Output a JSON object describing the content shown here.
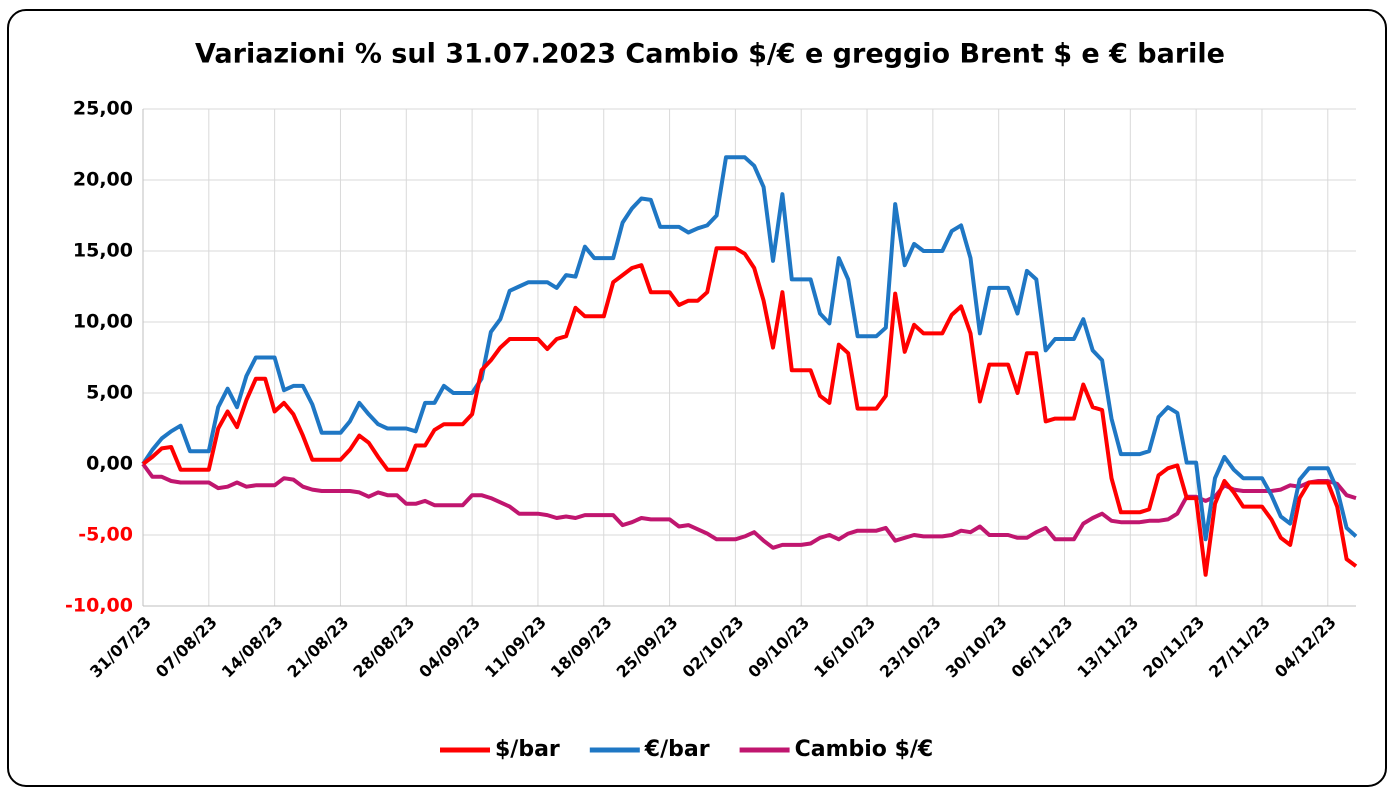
{
  "chart_data": {
    "type": "line",
    "title": "Variazioni % sul 31.07.2023 Cambio $/€ e greggio Brent $ e € barile",
    "categories": [
      "31/07/23",
      null,
      null,
      null,
      null,
      null,
      null,
      "07/08/23",
      null,
      null,
      null,
      null,
      null,
      null,
      "14/08/23",
      null,
      null,
      null,
      null,
      null,
      null,
      "21/08/23",
      null,
      null,
      null,
      null,
      null,
      null,
      "28/08/23",
      null,
      null,
      null,
      null,
      null,
      null,
      "04/09/23",
      null,
      null,
      null,
      null,
      null,
      null,
      "11/09/23",
      null,
      null,
      null,
      null,
      null,
      null,
      "18/09/23",
      null,
      null,
      null,
      null,
      null,
      null,
      "25/09/23",
      null,
      null,
      null,
      null,
      null,
      null,
      "02/10/23",
      null,
      null,
      null,
      null,
      null,
      null,
      "09/10/23",
      null,
      null,
      null,
      null,
      null,
      null,
      "16/10/23",
      null,
      null,
      null,
      null,
      null,
      null,
      "23/10/23",
      null,
      null,
      null,
      null,
      null,
      null,
      "30/10/23",
      null,
      null,
      null,
      null,
      null,
      null,
      "06/11/23",
      null,
      null,
      null,
      null,
      null,
      null,
      "13/11/23",
      null,
      null,
      null,
      null,
      null,
      null,
      "20/11/23",
      null,
      null,
      null,
      null,
      null,
      null,
      "27/11/23",
      null,
      null,
      null,
      null,
      null,
      null,
      "04/12/23",
      null,
      null,
      null
    ],
    "series": [
      {
        "name": "$/bar",
        "color": "#ff0000",
        "values": [
          0,
          0.5,
          1.1,
          1.2,
          -0.4,
          -0.4,
          -0.4,
          -0.4,
          2.5,
          3.7,
          2.6,
          4.5,
          6.0,
          6.0,
          3.7,
          4.3,
          3.5,
          2.0,
          0.3,
          0.3,
          0.3,
          0.3,
          1.0,
          2.0,
          1.5,
          0.5,
          -0.4,
          -0.4,
          -0.4,
          1.3,
          1.3,
          2.4,
          2.8,
          2.8,
          2.8,
          3.5,
          6.6,
          7.3,
          8.2,
          8.8,
          8.8,
          8.8,
          8.8,
          8.1,
          8.8,
          9.0,
          11.0,
          10.4,
          10.4,
          10.4,
          12.8,
          13.3,
          13.8,
          14.0,
          12.1,
          12.1,
          12.1,
          11.2,
          11.5,
          11.5,
          12.1,
          15.2,
          15.2,
          15.2,
          14.8,
          13.8,
          11.5,
          8.2,
          12.1,
          6.6,
          6.6,
          6.6,
          4.8,
          4.3,
          8.4,
          7.8,
          3.9,
          3.9,
          3.9,
          4.8,
          12.0,
          7.9,
          9.8,
          9.2,
          9.2,
          9.2,
          10.5,
          11.1,
          9.2,
          4.4,
          7.0,
          7.0,
          7.0,
          5.0,
          7.8,
          7.8,
          3.0,
          3.2,
          3.2,
          3.2,
          5.6,
          4.0,
          3.8,
          -1.0,
          -3.4,
          -3.4,
          -3.4,
          -3.2,
          -0.8,
          -0.3,
          -0.1,
          -2.4,
          -2.4,
          -7.8,
          -2.8,
          -1.2,
          -2.0,
          -3.0,
          -3.0,
          -3.0,
          -3.9,
          -5.2,
          -5.7,
          -2.4,
          -1.3,
          -1.3,
          -1.3,
          -3.0,
          -6.7,
          -7.2
        ]
      },
      {
        "name": "€/bar",
        "color": "#1f77c4",
        "values": [
          0,
          1.0,
          1.8,
          2.3,
          2.7,
          0.9,
          0.9,
          0.9,
          4.0,
          5.3,
          4.0,
          6.2,
          7.5,
          7.5,
          7.5,
          5.2,
          5.5,
          5.5,
          4.2,
          2.2,
          2.2,
          2.2,
          3.0,
          4.3,
          3.5,
          2.8,
          2.5,
          2.5,
          2.5,
          2.3,
          4.3,
          4.3,
          5.5,
          5.0,
          5.0,
          5.0,
          6.0,
          9.3,
          10.2,
          12.2,
          12.5,
          12.8,
          12.8,
          12.8,
          12.4,
          13.3,
          13.2,
          15.3,
          14.5,
          14.5,
          14.5,
          17.0,
          18.0,
          18.7,
          18.6,
          16.7,
          16.7,
          16.7,
          16.3,
          16.6,
          16.8,
          17.5,
          21.6,
          21.6,
          21.6,
          21.0,
          19.5,
          14.3,
          19.0,
          13.0,
          13.0,
          13.0,
          10.6,
          9.9,
          14.5,
          13.0,
          9.0,
          9.0,
          9.0,
          9.6,
          18.3,
          14.0,
          15.5,
          15.0,
          15.0,
          15.0,
          16.4,
          16.8,
          14.5,
          9.2,
          12.4,
          12.4,
          12.4,
          10.6,
          13.6,
          13.0,
          8.0,
          8.8,
          8.8,
          8.8,
          10.2,
          8.0,
          7.3,
          3.2,
          0.7,
          0.7,
          0.7,
          0.9,
          3.3,
          4.0,
          3.6,
          0.1,
          0.1,
          -5.3,
          -1.0,
          0.5,
          -0.4,
          -1.0,
          -1.0,
          -1.0,
          -2.2,
          -3.7,
          -4.2,
          -1.1,
          -0.3,
          -0.3,
          -0.3,
          -1.8,
          -4.5,
          -5.1
        ]
      },
      {
        "name": "Cambio $/€",
        "color": "#c0166f",
        "values": [
          0,
          -0.9,
          -0.9,
          -1.2,
          -1.3,
          -1.3,
          -1.3,
          -1.3,
          -1.7,
          -1.6,
          -1.3,
          -1.6,
          -1.5,
          -1.5,
          -1.5,
          -1.0,
          -1.1,
          -1.6,
          -1.8,
          -1.9,
          -1.9,
          -1.9,
          -1.9,
          -2.0,
          -2.3,
          -2.0,
          -2.2,
          -2.2,
          -2.8,
          -2.8,
          -2.6,
          -2.9,
          -2.9,
          -2.9,
          -2.9,
          -2.2,
          -2.2,
          -2.4,
          -2.7,
          -3.0,
          -3.5,
          -3.5,
          -3.5,
          -3.6,
          -3.8,
          -3.7,
          -3.8,
          -3.6,
          -3.6,
          -3.6,
          -3.6,
          -4.3,
          -4.1,
          -3.8,
          -3.9,
          -3.9,
          -3.9,
          -4.4,
          -4.3,
          -4.6,
          -4.9,
          -5.3,
          -5.3,
          -5.3,
          -5.1,
          -4.8,
          -5.4,
          -5.9,
          -5.7,
          -5.7,
          -5.7,
          -5.6,
          -5.2,
          -5.0,
          -5.3,
          -4.9,
          -4.7,
          -4.7,
          -4.7,
          -4.5,
          -5.4,
          -5.2,
          -5.0,
          -5.1,
          -5.1,
          -5.1,
          -5.0,
          -4.7,
          -4.8,
          -4.4,
          -5.0,
          -5.0,
          -5.0,
          -5.2,
          -5.2,
          -4.8,
          -4.5,
          -5.3,
          -5.3,
          -5.3,
          -4.2,
          -3.8,
          -3.5,
          -4.0,
          -4.1,
          -4.1,
          -4.1,
          -4.0,
          -4.0,
          -3.9,
          -3.5,
          -2.3,
          -2.3,
          -2.6,
          -2.3,
          -1.5,
          -1.8,
          -1.9,
          -1.9,
          -1.9,
          -1.9,
          -1.8,
          -1.5,
          -1.6,
          -1.3,
          -1.2,
          -1.2,
          -1.4,
          -2.2,
          -2.4
        ]
      }
    ],
    "ylim": [
      -10,
      25
    ],
    "yticks": [
      {
        "value": -10,
        "label": "-10,00"
      },
      {
        "value": -5,
        "label": "-5,00"
      },
      {
        "value": 0,
        "label": "0,00"
      },
      {
        "value": 5,
        "label": "5,00"
      },
      {
        "value": 10,
        "label": "10,00"
      },
      {
        "value": 15,
        "label": "15,00"
      },
      {
        "value": 20,
        "label": "20,00"
      },
      {
        "value": 25,
        "label": "25,00"
      }
    ],
    "negative_tick_color": "#ff0000",
    "grid": true,
    "legend": "bottom"
  }
}
